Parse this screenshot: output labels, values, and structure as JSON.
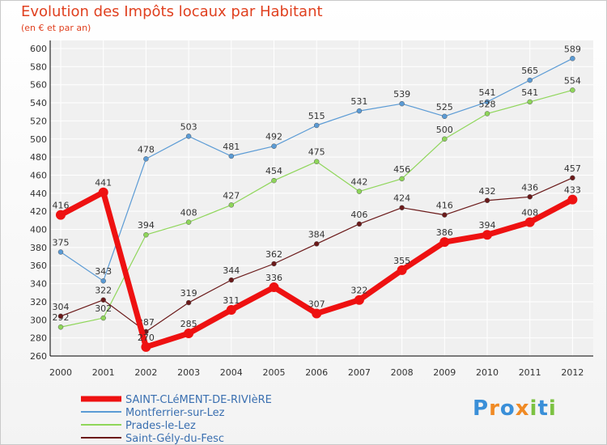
{
  "title": "Evolution des Impôts locaux par Habitant",
  "subtitle": "(en € et par an)",
  "logo_text": "Proxiti",
  "chart_data": {
    "type": "line",
    "x": [
      "2000",
      "2001",
      "2002",
      "2003",
      "2004",
      "2005",
      "2006",
      "2007",
      "2008",
      "2009",
      "2010",
      "2011",
      "2012"
    ],
    "ylim": [
      260,
      600
    ],
    "yticks": [
      260,
      280,
      300,
      320,
      340,
      360,
      380,
      400,
      420,
      440,
      460,
      480,
      500,
      520,
      540,
      560,
      580,
      600
    ],
    "grid": true,
    "legend_position": "bottom-left",
    "series": [
      {
        "name": "SAINT-CLéMENT-DE-RIVIèRE",
        "color": "#ee1111",
        "values": [
          416,
          441,
          270,
          285,
          311,
          336,
          307,
          322,
          355,
          386,
          394,
          408,
          433
        ]
      },
      {
        "name": "Montferrier-sur-Lez",
        "color": "#5b9bd5",
        "values": [
          375,
          343,
          478,
          503,
          481,
          492,
          515,
          531,
          539,
          525,
          541,
          565,
          589
        ]
      },
      {
        "name": "Prades-le-Lez",
        "color": "#8fd65a",
        "values": [
          292,
          302,
          394,
          408,
          427,
          454,
          475,
          442,
          456,
          500,
          528,
          541,
          554
        ]
      },
      {
        "name": "Saint-Gély-du-Fesc",
        "color": "#6b1a1a",
        "values": [
          304,
          322,
          287,
          319,
          344,
          362,
          384,
          406,
          424,
          416,
          432,
          436,
          457
        ]
      }
    ]
  }
}
